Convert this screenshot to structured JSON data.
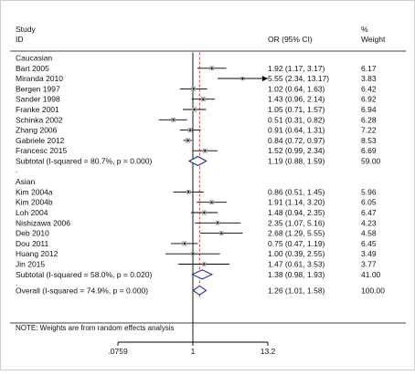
{
  "chart_data": {
    "type": "forest",
    "header": {
      "study": "Study",
      "id": "ID",
      "or_ci": "OR (95% CI)",
      "pct": "%",
      "weight": "Weight"
    },
    "scale": "log",
    "x_ticks": [
      {
        "value": 0.0759,
        "label": ".0759"
      },
      {
        "value": 1,
        "label": "1"
      },
      {
        "value": 13.2,
        "label": "13.2"
      }
    ],
    "null_line": 1,
    "overall_line": 1.26,
    "groups": [
      {
        "name": "Caucasian",
        "studies": [
          {
            "label": "Bart 2005",
            "or": 1.92,
            "lo": 1.17,
            "hi": 3.17,
            "text": "1.92 (1.17, 3.17)",
            "weight": "6.17"
          },
          {
            "label": "Miranda 2010",
            "or": 5.55,
            "lo": 2.34,
            "hi": 13.17,
            "text": "5.55 (2.34, 13.17)",
            "weight": "3.83",
            "arrow": true
          },
          {
            "label": "Bergen 1997",
            "or": 1.02,
            "lo": 0.64,
            "hi": 1.63,
            "text": "1.02 (0.64, 1.63)",
            "weight": "6.42"
          },
          {
            "label": "Sander 1998",
            "or": 1.43,
            "lo": 0.96,
            "hi": 2.14,
            "text": "1.43 (0.96, 2.14)",
            "weight": "6.92"
          },
          {
            "label": "Franke 2001",
            "or": 1.05,
            "lo": 0.71,
            "hi": 1.57,
            "text": "1.05 (0.71, 1.57)",
            "weight": "6.94"
          },
          {
            "label": "Schinka 2002",
            "or": 0.51,
            "lo": 0.31,
            "hi": 0.82,
            "text": "0.51 (0.31, 0.82)",
            "weight": "6.28"
          },
          {
            "label": "Zhang 2006",
            "or": 0.91,
            "lo": 0.64,
            "hi": 1.31,
            "text": "0.91 (0.64, 1.31)",
            "weight": "7.22"
          },
          {
            "label": "Gabriele 2012",
            "or": 0.84,
            "lo": 0.72,
            "hi": 0.97,
            "text": "0.84 (0.72, 0.97)",
            "weight": "8.53"
          },
          {
            "label": "Francesc 2015",
            "or": 1.52,
            "lo": 0.99,
            "hi": 2.34,
            "text": "1.52 (0.99, 2.34)",
            "weight": "6.69"
          }
        ],
        "subtotal": {
          "label": "Subtotal  (I-squared = 80.7%, p = 0.000)",
          "or": 1.19,
          "lo": 0.88,
          "hi": 1.59,
          "text": "1.19 (0.88, 1.59)",
          "weight": "59.00"
        }
      },
      {
        "name": "Asian",
        "studies": [
          {
            "label": "Kim 2004a",
            "or": 0.86,
            "lo": 0.51,
            "hi": 1.45,
            "text": "0.86 (0.51, 1.45)",
            "weight": "5.96"
          },
          {
            "label": "Kim 2004b",
            "or": 1.91,
            "lo": 1.14,
            "hi": 3.2,
            "text": "1.91 (1.14, 3.20)",
            "weight": "6.05"
          },
          {
            "label": "Loh 2004",
            "or": 1.48,
            "lo": 0.94,
            "hi": 2.35,
            "text": "1.48 (0.94, 2.35)",
            "weight": "6.47"
          },
          {
            "label": "Nishizawa 2006",
            "or": 2.35,
            "lo": 1.07,
            "hi": 5.16,
            "text": "2.35 (1.07, 5.16)",
            "weight": "4.23"
          },
          {
            "label": "Deb 2010",
            "or": 2.68,
            "lo": 1.29,
            "hi": 5.55,
            "text": "2.68 (1.29, 5.55)",
            "weight": "4.58"
          },
          {
            "label": "Dou 2011",
            "or": 0.75,
            "lo": 0.47,
            "hi": 1.19,
            "text": "0.75 (0.47, 1.19)",
            "weight": "6.45"
          },
          {
            "label": "Huang 2012",
            "or": 1.0,
            "lo": 0.39,
            "hi": 2.55,
            "text": "1.00 (0.39, 2.55)",
            "weight": "3.49"
          },
          {
            "label": "Jin 2015",
            "or": 1.47,
            "lo": 0.61,
            "hi": 3.53,
            "text": "1.47 (0.61, 3.53)",
            "weight": "3.77"
          }
        ],
        "subtotal": {
          "label": "Subtotal  (I-squared = 58.0%, p = 0.020)",
          "or": 1.38,
          "lo": 0.98,
          "hi": 1.93,
          "text": "1.38 (0.98, 1.93)",
          "weight": "41.00"
        }
      }
    ],
    "overall": {
      "label": "Overall  (I-squared = 74.9%, p = 0.000)",
      "or": 1.26,
      "lo": 1.01,
      "hi": 1.58,
      "text": "1.26 (1.01, 1.58)",
      "weight": "100.00"
    },
    "note": "NOTE: Weights are from random effects analysis"
  }
}
